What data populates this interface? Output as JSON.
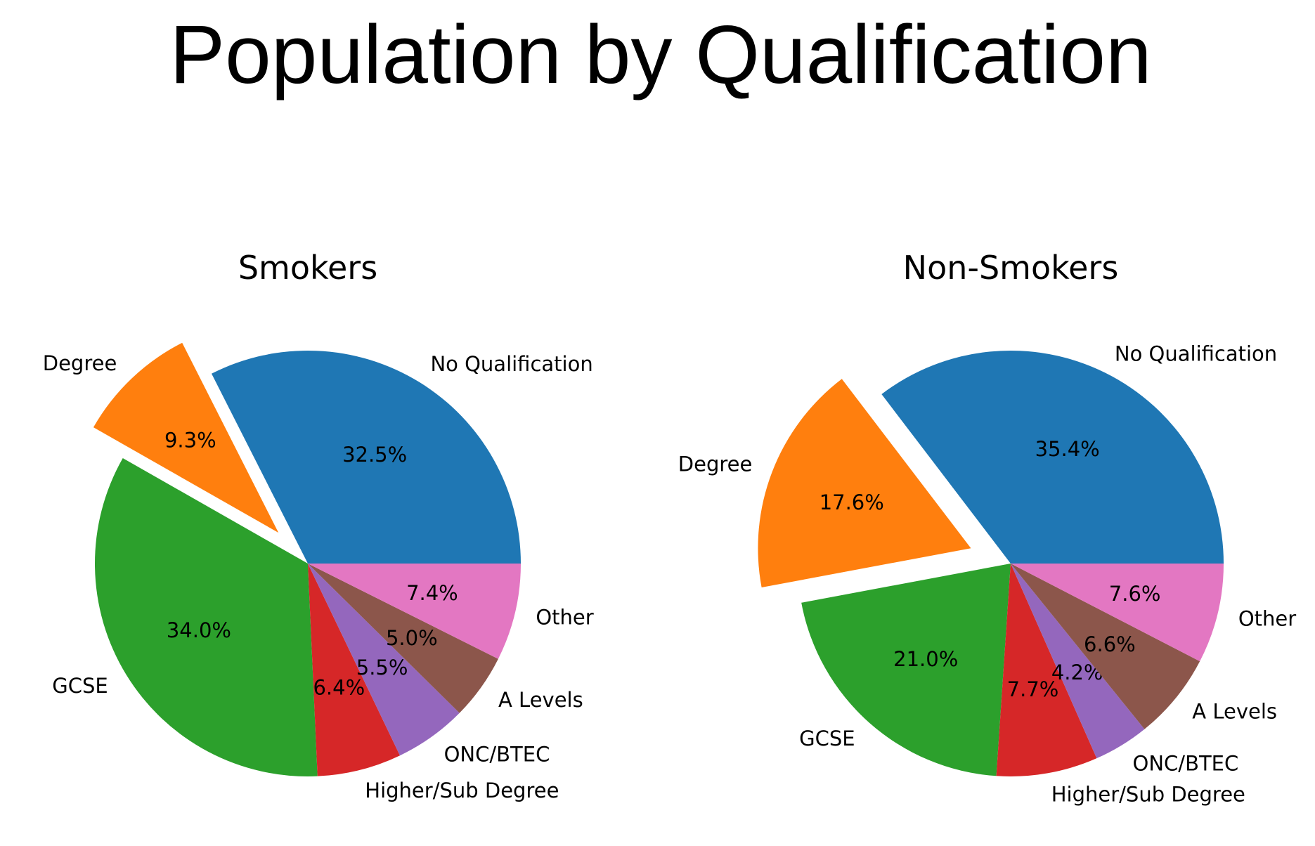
{
  "figure": {
    "title": "Population by Qualification"
  },
  "chart_data": [
    {
      "type": "pie",
      "title": "Smokers",
      "start_angle_deg": 0,
      "direction": "counterclockwise",
      "exploded": "Degree",
      "slices": [
        {
          "label": "No Qualification",
          "value": 32.5,
          "pct_text": "32.5%",
          "color": "#1f77b4"
        },
        {
          "label": "Degree",
          "value": 9.3,
          "pct_text": "9.3%",
          "color": "#ff7f0e"
        },
        {
          "label": "GCSE",
          "value": 34.0,
          "pct_text": "34.0%",
          "color": "#2ca02c"
        },
        {
          "label": "Higher/Sub Degree",
          "value": 6.4,
          "pct_text": "6.4%",
          "color": "#d62728"
        },
        {
          "label": "ONC/BTEC",
          "value": 5.5,
          "pct_text": "5.5%",
          "color": "#9467bd"
        },
        {
          "label": "A Levels",
          "value": 5.0,
          "pct_text": "5.0%",
          "color": "#8c564b"
        },
        {
          "label": "Other",
          "value": 7.4,
          "pct_text": "7.4%",
          "color": "#e377c2"
        }
      ]
    },
    {
      "type": "pie",
      "title": "Non-Smokers",
      "start_angle_deg": 0,
      "direction": "counterclockwise",
      "exploded": "Degree",
      "slices": [
        {
          "label": "No Qualification",
          "value": 35.4,
          "pct_text": "35.4%",
          "color": "#1f77b4"
        },
        {
          "label": "Degree",
          "value": 17.6,
          "pct_text": "17.6%",
          "color": "#ff7f0e"
        },
        {
          "label": "GCSE",
          "value": 21.0,
          "pct_text": "21.0%",
          "color": "#2ca02c"
        },
        {
          "label": "Higher/Sub Degree",
          "value": 7.7,
          "pct_text": "7.7%",
          "color": "#d62728"
        },
        {
          "label": "ONC/BTEC",
          "value": 4.2,
          "pct_text": "4.2%",
          "color": "#9467bd"
        },
        {
          "label": "A Levels",
          "value": 6.6,
          "pct_text": "6.6%",
          "color": "#8c564b"
        },
        {
          "label": "Other",
          "value": 7.6,
          "pct_text": "7.6%",
          "color": "#e377c2"
        }
      ]
    }
  ]
}
